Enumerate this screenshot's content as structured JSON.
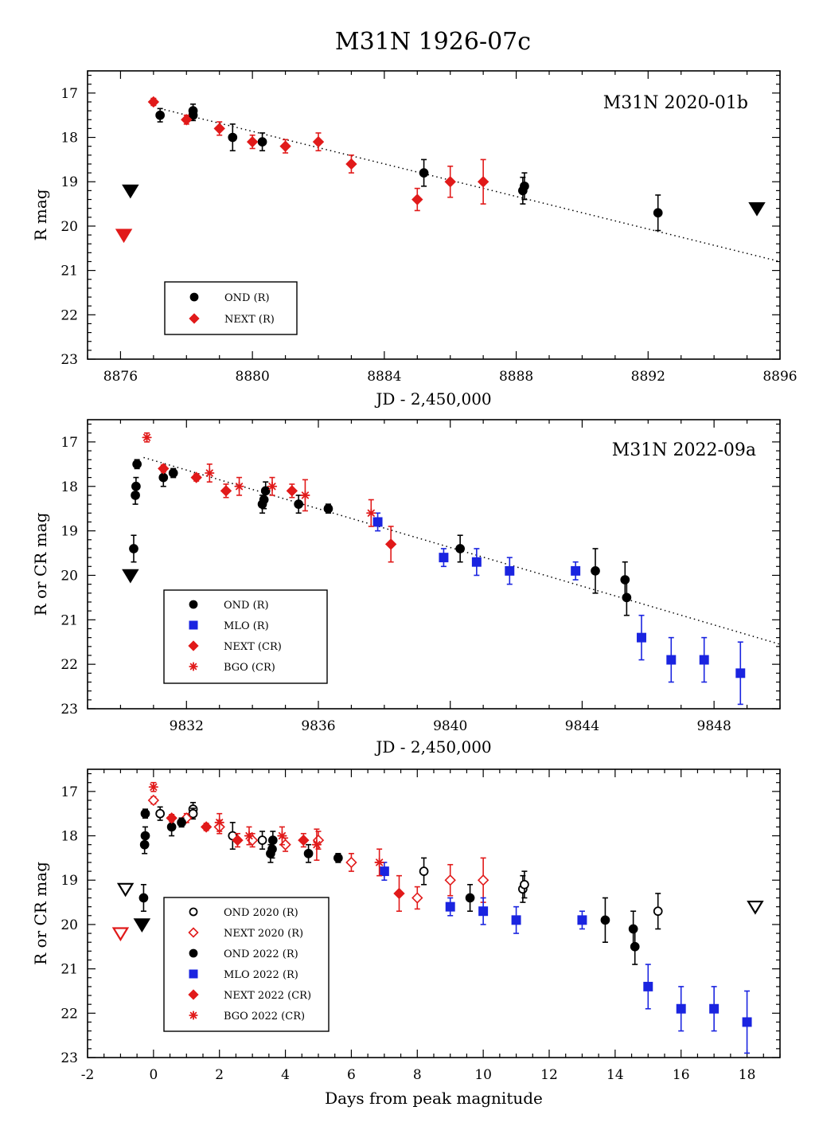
{
  "title": "M31N 1926-07c",
  "colors": {
    "black": "#000000",
    "red": "#e11a1a",
    "blue": "#1a24e0"
  },
  "chart_data": [
    {
      "type": "scatter",
      "annotation": "M31N 2020-01b",
      "xlabel": "JD - 2,450,000",
      "ylabel": "R mag",
      "xlim": [
        8875,
        8896
      ],
      "ylim": [
        23,
        16.5
      ],
      "xticks": [
        8876,
        8880,
        8884,
        8888,
        8892,
        8896
      ],
      "yticks": [
        17,
        18,
        19,
        20,
        21,
        22,
        23
      ],
      "fit_line": {
        "x": [
          8877.2,
          8896
        ],
        "y": [
          17.35,
          20.8
        ]
      },
      "legend": [
        {
          "label": "OND (R)",
          "marker": "circle",
          "color": "black",
          "filled": true
        },
        {
          "label": "NEXT (R)",
          "marker": "diamond",
          "color": "red",
          "filled": true
        }
      ],
      "series": [
        {
          "name": "OND (R)",
          "marker": "circle",
          "color": "black",
          "filled": true,
          "points": [
            [
              8877.2,
              17.5,
              0.15
            ],
            [
              8878.2,
              17.4,
              0.15
            ],
            [
              8878.2,
              17.5,
              0.12
            ],
            [
              8879.4,
              18.0,
              0.3
            ],
            [
              8880.3,
              18.1,
              0.2
            ],
            [
              8885.2,
              18.8,
              0.3
            ],
            [
              8888.2,
              19.2,
              0.3
            ],
            [
              8888.25,
              19.1,
              0.3
            ],
            [
              8892.3,
              19.7,
              0.4
            ]
          ]
        },
        {
          "name": "NEXT (R)",
          "marker": "diamond",
          "color": "red",
          "filled": true,
          "points": [
            [
              8877.0,
              17.2,
              0.08
            ],
            [
              8878.0,
              17.6,
              0.1
            ],
            [
              8879.0,
              17.8,
              0.15
            ],
            [
              8880.0,
              18.1,
              0.15
            ],
            [
              8881.0,
              18.2,
              0.15
            ],
            [
              8882.0,
              18.1,
              0.2
            ],
            [
              8883.0,
              18.6,
              0.2
            ],
            [
              8885.0,
              19.4,
              0.25
            ],
            [
              8886.0,
              19.0,
              0.35
            ],
            [
              8887.0,
              19.0,
              0.5
            ]
          ]
        },
        {
          "name": "OND upper limit",
          "marker": "triangle-down",
          "color": "black",
          "filled": true,
          "points": [
            [
              8876.3,
              19.2,
              0
            ],
            [
              8895.3,
              19.6,
              0
            ]
          ]
        },
        {
          "name": "NEXT upper limit",
          "marker": "triangle-down",
          "color": "red",
          "filled": true,
          "points": [
            [
              8876.1,
              20.2,
              0
            ]
          ]
        }
      ]
    },
    {
      "type": "scatter",
      "annotation": "M31N 2022-09a",
      "xlabel": "JD - 2,450,000",
      "ylabel": "R or CR mag",
      "xlim": [
        9829,
        9850
      ],
      "ylim": [
        23,
        16.5
      ],
      "xticks": [
        9832,
        9836,
        9840,
        9844,
        9848
      ],
      "yticks": [
        17,
        18,
        19,
        20,
        21,
        22,
        23
      ],
      "fit_line": {
        "x": [
          9830.7,
          9850
        ],
        "y": [
          17.35,
          21.55
        ]
      },
      "legend": [
        {
          "label": "OND (R)",
          "marker": "circle",
          "color": "black",
          "filled": true
        },
        {
          "label": "MLO (R)",
          "marker": "square",
          "color": "blue",
          "filled": true
        },
        {
          "label": "NEXT (CR)",
          "marker": "diamond",
          "color": "red",
          "filled": true
        },
        {
          "label": "BGO (CR)",
          "marker": "star",
          "color": "red",
          "filled": true
        }
      ],
      "series": [
        {
          "name": "OND (R)",
          "marker": "circle",
          "color": "black",
          "filled": true,
          "points": [
            [
              9830.4,
              19.4,
              0.3
            ],
            [
              9830.45,
              18.2,
              0.2
            ],
            [
              9830.47,
              18.0,
              0.2
            ],
            [
              9830.5,
              17.5,
              0.1
            ],
            [
              9831.3,
              17.8,
              0.2
            ],
            [
              9831.6,
              17.7,
              0.1
            ],
            [
              9834.3,
              18.4,
              0.2
            ],
            [
              9834.35,
              18.3,
              0.2
            ],
            [
              9834.4,
              18.1,
              0.2
            ],
            [
              9835.4,
              18.4,
              0.2
            ],
            [
              9836.3,
              18.5,
              0.1
            ],
            [
              9840.3,
              19.4,
              0.3
            ],
            [
              9844.4,
              19.9,
              0.5
            ],
            [
              9845.3,
              20.1,
              0.4
            ],
            [
              9845.35,
              20.5,
              0.4
            ]
          ]
        },
        {
          "name": "MLO (R)",
          "marker": "square",
          "color": "blue",
          "filled": true,
          "points": [
            [
              9837.8,
              18.8,
              0.2
            ],
            [
              9839.8,
              19.6,
              0.2
            ],
            [
              9840.8,
              19.7,
              0.3
            ],
            [
              9841.8,
              19.9,
              0.3
            ],
            [
              9843.8,
              19.9,
              0.2
            ],
            [
              9845.8,
              21.4,
              0.5
            ],
            [
              9846.7,
              21.9,
              0.5
            ],
            [
              9847.7,
              21.9,
              0.5
            ],
            [
              9848.8,
              22.2,
              0.7
            ]
          ]
        },
        {
          "name": "NEXT (CR)",
          "marker": "diamond",
          "color": "red",
          "filled": true,
          "points": [
            [
              9831.3,
              17.6,
              0.08
            ],
            [
              9832.3,
              17.8,
              0.08
            ],
            [
              9833.2,
              18.1,
              0.15
            ],
            [
              9835.2,
              18.1,
              0.15
            ],
            [
              9838.2,
              19.3,
              0.4
            ]
          ]
        },
        {
          "name": "BGO (CR)",
          "marker": "star",
          "color": "red",
          "filled": true,
          "points": [
            [
              9830.8,
              16.9,
              0.1
            ],
            [
              9832.7,
              17.7,
              0.2
            ],
            [
              9833.6,
              18.0,
              0.2
            ],
            [
              9834.6,
              18.0,
              0.2
            ],
            [
              9835.6,
              18.2,
              0.35
            ],
            [
              9837.6,
              18.6,
              0.3
            ]
          ]
        },
        {
          "name": "OND upper limit",
          "marker": "triangle-down",
          "color": "black",
          "filled": true,
          "points": [
            [
              9830.3,
              20.0,
              0
            ]
          ]
        }
      ]
    },
    {
      "type": "scatter",
      "annotation": "",
      "xlabel": "Days from peak magnitude",
      "ylabel": "R or CR mag",
      "xlim": [
        -2,
        19
      ],
      "ylim": [
        23,
        16.5
      ],
      "xticks": [
        -2,
        0,
        2,
        4,
        6,
        8,
        10,
        12,
        14,
        16,
        18
      ],
      "yticks": [
        17,
        18,
        19,
        20,
        21,
        22,
        23
      ],
      "legend": [
        {
          "label": "OND 2020 (R)",
          "marker": "circle",
          "color": "black",
          "filled": false
        },
        {
          "label": "NEXT 2020 (R)",
          "marker": "diamond",
          "color": "red",
          "filled": false
        },
        {
          "label": "OND 2022 (R)",
          "marker": "circle",
          "color": "black",
          "filled": true
        },
        {
          "label": "MLO 2022 (R)",
          "marker": "square",
          "color": "blue",
          "filled": true
        },
        {
          "label": "NEXT 2022 (CR)",
          "marker": "diamond",
          "color": "red",
          "filled": true
        },
        {
          "label": "BGO 2022 (CR)",
          "marker": "star",
          "color": "red",
          "filled": true
        }
      ],
      "series": [
        {
          "name": "OND 2020 (R)",
          "marker": "circle",
          "color": "black",
          "filled": false,
          "points": [
            [
              0.2,
              17.5,
              0.15
            ],
            [
              1.2,
              17.4,
              0.15
            ],
            [
              1.2,
              17.5,
              0.12
            ],
            [
              2.4,
              18.0,
              0.3
            ],
            [
              3.3,
              18.1,
              0.2
            ],
            [
              8.2,
              18.8,
              0.3
            ],
            [
              11.2,
              19.2,
              0.3
            ],
            [
              11.25,
              19.1,
              0.3
            ],
            [
              15.3,
              19.7,
              0.4
            ]
          ]
        },
        {
          "name": "NEXT 2020 (R)",
          "marker": "diamond",
          "color": "red",
          "filled": false,
          "points": [
            [
              0.0,
              17.2,
              0.08
            ],
            [
              1.0,
              17.6,
              0.1
            ],
            [
              2.0,
              17.8,
              0.15
            ],
            [
              3.0,
              18.1,
              0.15
            ],
            [
              4.0,
              18.2,
              0.15
            ],
            [
              5.0,
              18.1,
              0.2
            ],
            [
              6.0,
              18.6,
              0.2
            ],
            [
              8.0,
              19.4,
              0.25
            ],
            [
              9.0,
              19.0,
              0.35
            ],
            [
              10.0,
              19.0,
              0.5
            ]
          ]
        },
        {
          "name": "OND 2022 (R)",
          "marker": "circle",
          "color": "black",
          "filled": true,
          "points": [
            [
              -0.3,
              19.4,
              0.3
            ],
            [
              -0.27,
              18.2,
              0.2
            ],
            [
              -0.25,
              18.0,
              0.2
            ],
            [
              -0.25,
              17.5,
              0.1
            ],
            [
              0.55,
              17.8,
              0.2
            ],
            [
              0.85,
              17.7,
              0.1
            ],
            [
              3.55,
              18.4,
              0.2
            ],
            [
              3.6,
              18.3,
              0.2
            ],
            [
              3.62,
              18.1,
              0.2
            ],
            [
              4.7,
              18.4,
              0.2
            ],
            [
              5.6,
              18.5,
              0.1
            ],
            [
              9.6,
              19.4,
              0.3
            ],
            [
              13.7,
              19.9,
              0.5
            ],
            [
              14.55,
              20.1,
              0.4
            ],
            [
              14.6,
              20.5,
              0.4
            ]
          ]
        },
        {
          "name": "MLO 2022 (R)",
          "marker": "square",
          "color": "blue",
          "filled": true,
          "points": [
            [
              7.0,
              18.8,
              0.2
            ],
            [
              9.0,
              19.6,
              0.2
            ],
            [
              10.0,
              19.7,
              0.3
            ],
            [
              11.0,
              19.9,
              0.3
            ],
            [
              13.0,
              19.9,
              0.2
            ],
            [
              15.0,
              21.4,
              0.5
            ],
            [
              16.0,
              21.9,
              0.5
            ],
            [
              17.0,
              21.9,
              0.5
            ],
            [
              18.0,
              22.2,
              0.7
            ]
          ]
        },
        {
          "name": "NEXT 2022 (CR)",
          "marker": "diamond",
          "color": "red",
          "filled": true,
          "points": [
            [
              0.55,
              17.6,
              0.08
            ],
            [
              1.6,
              17.8,
              0.08
            ],
            [
              2.55,
              18.1,
              0.15
            ],
            [
              4.55,
              18.1,
              0.15
            ],
            [
              7.45,
              19.3,
              0.4
            ]
          ]
        },
        {
          "name": "BGO 2022 (CR)",
          "marker": "star",
          "color": "red",
          "filled": true,
          "points": [
            [
              0.0,
              16.9,
              0.1
            ],
            [
              2.0,
              17.7,
              0.2
            ],
            [
              2.9,
              18.0,
              0.2
            ],
            [
              3.9,
              18.0,
              0.2
            ],
            [
              4.95,
              18.2,
              0.35
            ],
            [
              6.85,
              18.6,
              0.3
            ]
          ]
        },
        {
          "name": "OND 2020 upper limit",
          "marker": "triangle-down",
          "color": "black",
          "filled": false,
          "points": [
            [
              -0.85,
              19.2,
              0
            ],
            [
              18.25,
              19.6,
              0
            ]
          ]
        },
        {
          "name": "NEXT 2020 upper limit",
          "marker": "triangle-down",
          "color": "red",
          "filled": false,
          "points": [
            [
              -1.0,
              20.2,
              0
            ]
          ]
        },
        {
          "name": "OND 2022 upper limit",
          "marker": "triangle-down",
          "color": "black",
          "filled": true,
          "points": [
            [
              -0.35,
              20.0,
              0
            ]
          ]
        }
      ]
    }
  ]
}
